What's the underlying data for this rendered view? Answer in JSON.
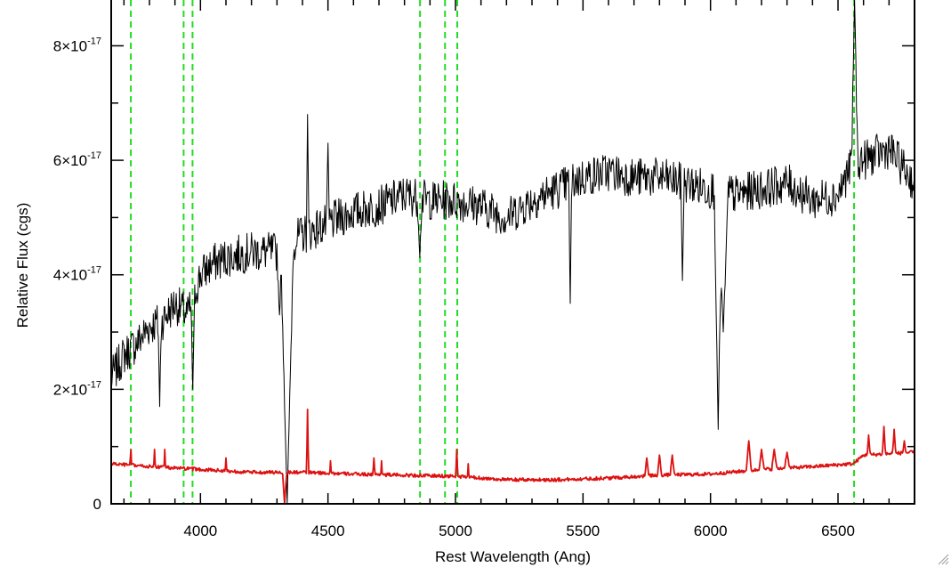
{
  "chart_data": {
    "type": "line",
    "xlabel": "Rest Wavelength (Ang)",
    "ylabel": "Relative Flux (cgs)",
    "xlim": [
      3650,
      6800
    ],
    "ylim": [
      0,
      8.8e-17
    ],
    "x_ticks": [
      {
        "value": 4000,
        "label": "4000"
      },
      {
        "value": 4500,
        "label": "4500"
      },
      {
        "value": 5000,
        "label": "5000"
      },
      {
        "value": 5500,
        "label": "5500"
      },
      {
        "value": 6000,
        "label": "6000"
      },
      {
        "value": 6500,
        "label": "6500"
      }
    ],
    "y_ticks": [
      {
        "value": 0,
        "mantissa": "0",
        "exponent": ""
      },
      {
        "value": 2e-17,
        "mantissa": "2×10",
        "exponent": "-17"
      },
      {
        "value": 4e-17,
        "mantissa": "4×10",
        "exponent": "-17"
      },
      {
        "value": 6e-17,
        "mantissa": "6×10",
        "exponent": "-17"
      },
      {
        "value": 8e-17,
        "mantissa": "8×10",
        "exponent": "-17"
      }
    ],
    "reference_lines_x": [
      3727,
      3934,
      3969,
      4861,
      4959,
      5007,
      6563
    ],
    "reference_line_color": "#22dd22",
    "series": [
      {
        "color": "#000000",
        "noise": 3.5e-18,
        "anchors": [
          [
            3650,
            2.2e-17
          ],
          [
            3700,
            2.6e-17
          ],
          [
            3750,
            2.8e-17
          ],
          [
            3800,
            3.1e-17
          ],
          [
            3850,
            3.2e-17
          ],
          [
            3900,
            3.5e-17
          ],
          [
            3950,
            3.3e-17
          ],
          [
            4000,
            4e-17
          ],
          [
            4050,
            4.2e-17
          ],
          [
            4100,
            4.3e-17
          ],
          [
            4200,
            4.4e-17
          ],
          [
            4300,
            4.4e-17
          ],
          [
            4400,
            4.7e-17
          ],
          [
            4500,
            4.9e-17
          ],
          [
            4600,
            5.1e-17
          ],
          [
            4700,
            5.2e-17
          ],
          [
            4800,
            5.4e-17
          ],
          [
            4900,
            5.3e-17
          ],
          [
            5000,
            5.3e-17
          ],
          [
            5100,
            5.2e-17
          ],
          [
            5200,
            5e-17
          ],
          [
            5300,
            5.3e-17
          ],
          [
            5400,
            5.5e-17
          ],
          [
            5500,
            5.7e-17
          ],
          [
            5600,
            5.8e-17
          ],
          [
            5700,
            5.7e-17
          ],
          [
            5800,
            5.7e-17
          ],
          [
            5900,
            5.6e-17
          ],
          [
            6000,
            5.5e-17
          ],
          [
            6100,
            5.4e-17
          ],
          [
            6200,
            5.5e-17
          ],
          [
            6300,
            5.6e-17
          ],
          [
            6400,
            5.3e-17
          ],
          [
            6500,
            5.4e-17
          ],
          [
            6560,
            6e-17
          ],
          [
            6600,
            6e-17
          ],
          [
            6700,
            6.2e-17
          ],
          [
            6800,
            5.6e-17
          ]
        ],
        "features": [
          [
            4340,
            0.0,
            25
          ],
          [
            4310,
            3.3e-17,
            10
          ],
          [
            4420,
            6.8e-17,
            5
          ],
          [
            4500,
            6.3e-17,
            5
          ],
          [
            5450,
            3.5e-17,
            6
          ],
          [
            5890,
            3.9e-17,
            6
          ],
          [
            6030,
            1.3e-17,
            15
          ],
          [
            6050,
            3e-17,
            20
          ],
          [
            6565,
            8.8e-17,
            12
          ],
          [
            3840,
            1.7e-17,
            6
          ],
          [
            3970,
            2e-17,
            8
          ],
          [
            4860,
            4.3e-17,
            8
          ]
        ]
      },
      {
        "color": "#dd1111",
        "noise": 3e-19,
        "anchors": [
          [
            3650,
            7e-18
          ],
          [
            3800,
            6.5e-18
          ],
          [
            4000,
            6e-18
          ],
          [
            4200,
            5.5e-18
          ],
          [
            4400,
            5.5e-18
          ],
          [
            4600,
            5.2e-18
          ],
          [
            4800,
            5e-18
          ],
          [
            5000,
            4.8e-18
          ],
          [
            5200,
            4.2e-18
          ],
          [
            5400,
            4.2e-18
          ],
          [
            5600,
            4.5e-18
          ],
          [
            5800,
            5e-18
          ],
          [
            6000,
            5.2e-18
          ],
          [
            6200,
            6e-18
          ],
          [
            6400,
            6.5e-18
          ],
          [
            6560,
            7e-18
          ],
          [
            6600,
            8.5e-18
          ],
          [
            6800,
            9e-18
          ]
        ],
        "features": [
          [
            3727,
            1e-17,
            3
          ],
          [
            3820,
            9.5e-18,
            3
          ],
          [
            3860,
            9.5e-18,
            3
          ],
          [
            4100,
            8e-18,
            3
          ],
          [
            4330,
            0.0,
            8
          ],
          [
            4420,
            1.65e-17,
            4
          ],
          [
            4510,
            7.5e-18,
            3
          ],
          [
            4680,
            8e-18,
            4
          ],
          [
            4710,
            7.5e-18,
            3
          ],
          [
            5005,
            9.5e-18,
            4
          ],
          [
            5050,
            7e-18,
            3
          ],
          [
            5750,
            8e-18,
            8
          ],
          [
            5800,
            8.5e-18,
            8
          ],
          [
            5850,
            8.5e-18,
            8
          ],
          [
            6150,
            1.1e-17,
            10
          ],
          [
            6200,
            9.5e-18,
            10
          ],
          [
            6250,
            9.5e-18,
            10
          ],
          [
            6300,
            9e-18,
            10
          ],
          [
            6620,
            1.2e-17,
            6
          ],
          [
            6680,
            1.35e-17,
            6
          ],
          [
            6720,
            1.3e-17,
            6
          ],
          [
            6760,
            1.1e-17,
            6
          ]
        ]
      }
    ]
  }
}
